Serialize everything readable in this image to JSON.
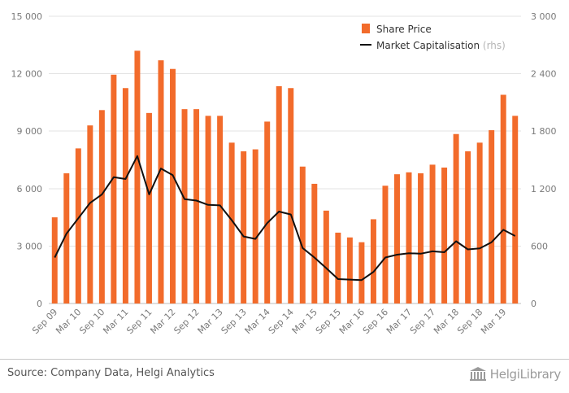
{
  "chart_data": {
    "type": "bar",
    "categories": [
      "Sep 09",
      "Dec 09",
      "Mar 10",
      "Jun 10",
      "Sep 10",
      "Dec 10",
      "Mar 11",
      "Jun 11",
      "Sep 11",
      "Dec 11",
      "Mar 12",
      "Jun 12",
      "Sep 12",
      "Dec 12",
      "Mar 13",
      "Jun 13",
      "Sep 13",
      "Dec 13",
      "Mar 14",
      "Jun 14",
      "Sep 14",
      "Dec 14",
      "Mar 15",
      "Jun 15",
      "Sep 15",
      "Dec 15",
      "Mar 16",
      "Jun 16",
      "Sep 16",
      "Dec 16",
      "Mar 17",
      "Jun 17",
      "Sep 17",
      "Dec 17",
      "Mar 18",
      "Jun 18",
      "Sep 18",
      "Dec 18",
      "Mar 19",
      "Jun 19"
    ],
    "xtick_labels": [
      "Sep 09",
      "Mar 10",
      "Sep 10",
      "Mar 11",
      "Sep 11",
      "Mar 12",
      "Sep 12",
      "Mar 13",
      "Sep 13",
      "Mar 14",
      "Sep 14",
      "Mar 15",
      "Sep 15",
      "Mar 16",
      "Sep 16",
      "Mar 17",
      "Sep 17",
      "Mar 18",
      "Sep 18",
      "Mar 19"
    ],
    "series": [
      {
        "name": "Share Price",
        "type": "bar",
        "axis": "left",
        "color": "#f26b2b",
        "values": [
          4500,
          6800,
          8100,
          9300,
          10100,
          11950,
          11250,
          13200,
          9950,
          12700,
          12250,
          10150,
          10150,
          9800,
          9800,
          8400,
          7950,
          8050,
          9500,
          11350,
          11250,
          7150,
          6250,
          4850,
          3700,
          3450,
          3200,
          4400,
          6150,
          6750,
          6850,
          6800,
          7250,
          7100,
          8850,
          7950,
          8400,
          9050,
          10900,
          9800
        ]
      },
      {
        "name": "Market Capitalisation",
        "name_suffix": "(rhs)",
        "type": "line",
        "axis": "right",
        "color": "#111111",
        "values": [
          480,
          730,
          890,
          1050,
          1140,
          1320,
          1300,
          1540,
          1140,
          1410,
          1340,
          1090,
          1075,
          1030,
          1025,
          870,
          700,
          675,
          840,
          960,
          930,
          580,
          480,
          370,
          255,
          250,
          245,
          330,
          480,
          510,
          525,
          520,
          545,
          535,
          650,
          565,
          575,
          640,
          770,
          705
        ]
      }
    ],
    "y_left": {
      "ylim": [
        0,
        15000
      ],
      "ticks": [
        "0",
        "3 000",
        "6 000",
        "9 000",
        "12 000",
        "15 000"
      ]
    },
    "y_right": {
      "ylim": [
        0,
        3000
      ],
      "ticks": [
        "0",
        "600",
        "1 200",
        "1 800",
        "2 400",
        "3 000"
      ]
    },
    "grid": true,
    "legend_position": "top-right"
  },
  "footer": {
    "source": "Source: Company Data, Helgi Analytics",
    "brand": "HelgiLibrary"
  }
}
